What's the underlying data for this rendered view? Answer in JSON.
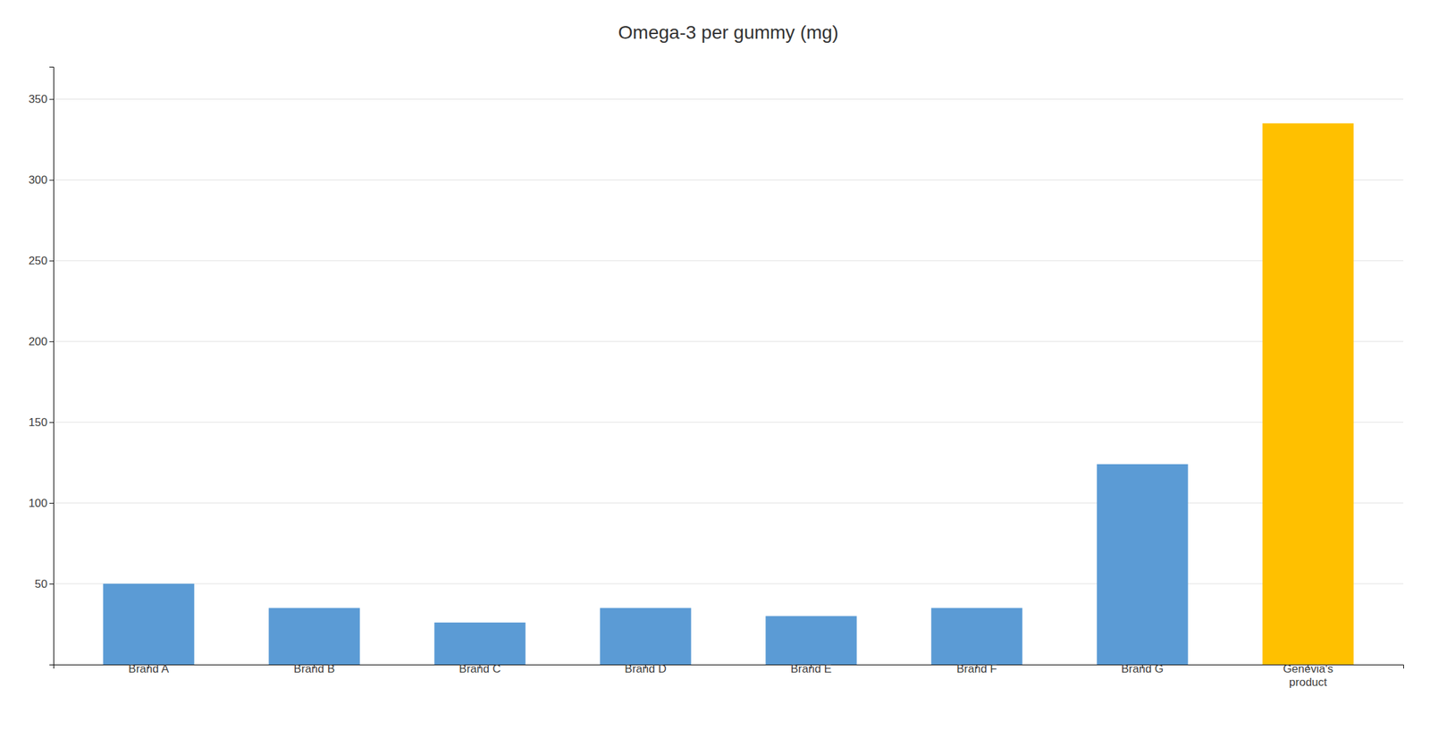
{
  "chart_data": {
    "type": "bar",
    "title": "Omega-3 per gummy (mg)",
    "categories": [
      "Brand A",
      "Brand B",
      "Brand C",
      "Brand D",
      "Brand E",
      "Brand F",
      "Brand G",
      "Genevia's\nproduct"
    ],
    "values": [
      50,
      35,
      26,
      35,
      30,
      35,
      124,
      335
    ],
    "colors": [
      "#5B9BD5",
      "#5B9BD5",
      "#5B9BD5",
      "#5B9BD5",
      "#5B9BD5",
      "#5B9BD5",
      "#5B9BD5",
      "#FFC000"
    ],
    "ylim": [
      0,
      370
    ],
    "yticks": [
      50,
      100,
      150,
      200,
      250,
      300,
      350
    ],
    "grid": true
  }
}
